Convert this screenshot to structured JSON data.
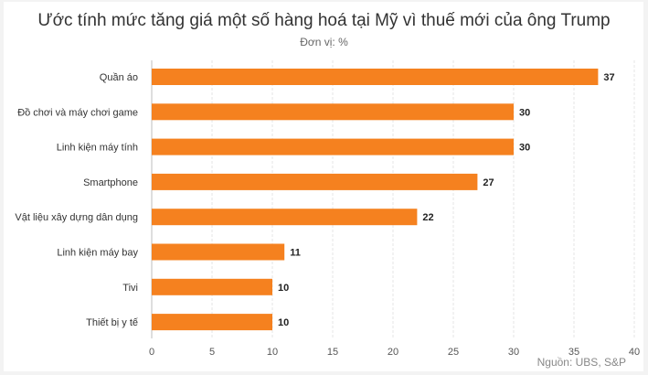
{
  "title": "Ước tính mức tăng giá một số hàng hoá tại Mỹ vì thuế mới của ông Trump",
  "subtitle": "Đơn vị: %",
  "source": "Nguồn: UBS, S&P",
  "chart_data": {
    "type": "bar",
    "orientation": "horizontal",
    "categories": [
      "Quần áo",
      "Đồ chơi và máy chơi game",
      "Linh kiện máy tính",
      "Smartphone",
      "Vật liệu xây dựng dân dụng",
      "Linh kiện máy bay",
      "Tivi",
      "Thiết bị y tế"
    ],
    "values": [
      37,
      30,
      30,
      27,
      22,
      11,
      10,
      10
    ],
    "title": "Ước tính mức tăng giá một số hàng hoá tại Mỹ vì thuế mới của ông Trump",
    "subtitle": "Đơn vị: %",
    "xlim": [
      0,
      40
    ],
    "xticks": [
      0,
      5,
      10,
      15,
      20,
      25,
      30,
      35,
      40
    ],
    "grid": true,
    "bar_color": "#f5811f",
    "data_labels": true
  }
}
